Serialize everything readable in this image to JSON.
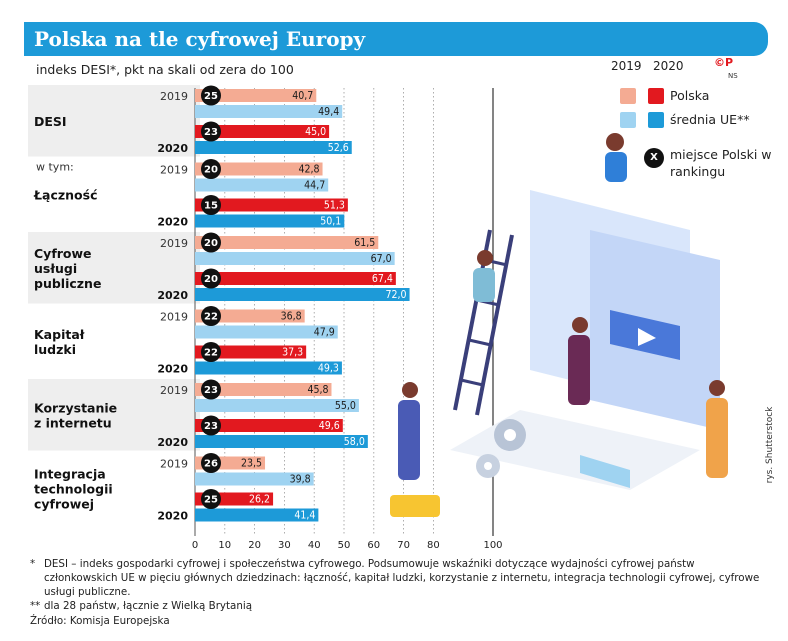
{
  "header": {
    "title": "Polska na tle cyfrowej Europy"
  },
  "subtitle": "indeks DESI*, pkt na skali od zera do 100",
  "colors": {
    "header_blue": "#1d9ad8",
    "poland_2019": "#f4ab93",
    "poland_2020": "#e2191f",
    "eu_2019": "#9fd3f1",
    "eu_2020": "#1d9ad8",
    "category_band": "#eeeeee",
    "rank_badge": "#111111"
  },
  "legend": {
    "year_2019": "2019",
    "year_2020": "2020",
    "poland": "Polska",
    "eu": "średnia UE**",
    "rank_symbol": "X",
    "rank_text": "miejsce Polski w rankingu",
    "logo": "©P",
    "logo_sub": "NS"
  },
  "chart_data": {
    "type": "bar",
    "orientation": "horizontal",
    "title": "Polska na tle cyfrowej Europy",
    "subtitle": "indeks DESI*, pkt na skali od zera do 100",
    "xlim": [
      0,
      100
    ],
    "ticks": [
      0,
      10,
      20,
      30,
      40,
      50,
      60,
      70,
      80,
      100
    ],
    "ticks_text": [
      "0",
      "10",
      "20",
      "30",
      "40",
      "50",
      "60",
      "70",
      "80",
      "100"
    ],
    "grid": "vertical dotted",
    "legend_position": "top-right",
    "sub_label": "w tym:",
    "categories": [
      {
        "name": "DESI",
        "lines": [
          "DESI"
        ],
        "banded": true,
        "groups": [
          {
            "year": "2019",
            "rank": "25",
            "pl": 40.7,
            "pl_text": "40,7",
            "eu": 49.4,
            "eu_text": "49,4"
          },
          {
            "year": "2020",
            "rank": "23",
            "pl": 45.0,
            "pl_text": "45,0",
            "eu": 52.6,
            "eu_text": "52,6"
          }
        ]
      },
      {
        "name": "Łączność",
        "lines": [
          "Łączność"
        ],
        "banded": false,
        "groups": [
          {
            "year": "2019",
            "rank": "20",
            "pl": 42.8,
            "pl_text": "42,8",
            "eu": 44.7,
            "eu_text": "44,7"
          },
          {
            "year": "2020",
            "rank": "15",
            "pl": 51.3,
            "pl_text": "51,3",
            "eu": 50.1,
            "eu_text": "50,1"
          }
        ]
      },
      {
        "name": "Cyfrowe usługi publiczne",
        "lines": [
          "Cyfrowe",
          "usługi",
          "publiczne"
        ],
        "banded": true,
        "groups": [
          {
            "year": "2019",
            "rank": "20",
            "pl": 61.5,
            "pl_text": "61,5",
            "eu": 67.0,
            "eu_text": "67,0"
          },
          {
            "year": "2020",
            "rank": "20",
            "pl": 67.4,
            "pl_text": "67,4",
            "eu": 72.0,
            "eu_text": "72,0"
          }
        ]
      },
      {
        "name": "Kapitał ludzki",
        "lines": [
          "Kapitał",
          "ludzki"
        ],
        "banded": false,
        "groups": [
          {
            "year": "2019",
            "rank": "22",
            "pl": 36.8,
            "pl_text": "36,8",
            "eu": 47.9,
            "eu_text": "47,9"
          },
          {
            "year": "2020",
            "rank": "22",
            "pl": 37.3,
            "pl_text": "37,3",
            "eu": 49.3,
            "eu_text": "49,3"
          }
        ]
      },
      {
        "name": "Korzystanie z internetu",
        "lines": [
          "Korzystanie",
          "z internetu"
        ],
        "banded": true,
        "groups": [
          {
            "year": "2019",
            "rank": "23",
            "pl": 45.8,
            "pl_text": "45,8",
            "eu": 55.0,
            "eu_text": "55,0"
          },
          {
            "year": "2020",
            "rank": "23",
            "pl": 49.6,
            "pl_text": "49,6",
            "eu": 58.0,
            "eu_text": "58,0"
          }
        ]
      },
      {
        "name": "Integracja technologii cyfrowej",
        "lines": [
          "Integracja",
          "technologii",
          "cyfrowej"
        ],
        "banded": false,
        "groups": [
          {
            "year": "2019",
            "rank": "26",
            "pl": 23.5,
            "pl_text": "23,5",
            "eu": 39.8,
            "eu_text": "39,8"
          },
          {
            "year": "2020",
            "rank": "25",
            "pl": 26.2,
            "pl_text": "26,2",
            "eu": 41.4,
            "eu_text": "41,4"
          }
        ]
      }
    ]
  },
  "illustration": {
    "icon": "people-building-website-illustration"
  },
  "credit": "rys. Shutterstock",
  "footnotes": [
    {
      "mark": "*",
      "text": "DESI – indeks gospodarki cyfrowej i społeczeństwa cyfrowego. Podsumowuje wskaźniki dotyczące wydajności cyfrowej państw członkowskich UE w pięciu głównych dziedzinach: łączność, kapitał ludzki, korzystanie z internetu, integracja technologii cyfrowej, cyfrowe usługi publiczne."
    },
    {
      "mark": "**",
      "text": "dla 28 państw, łącznie z Wielką Brytanią"
    }
  ],
  "source": "Źródło: Komisja Europejska"
}
